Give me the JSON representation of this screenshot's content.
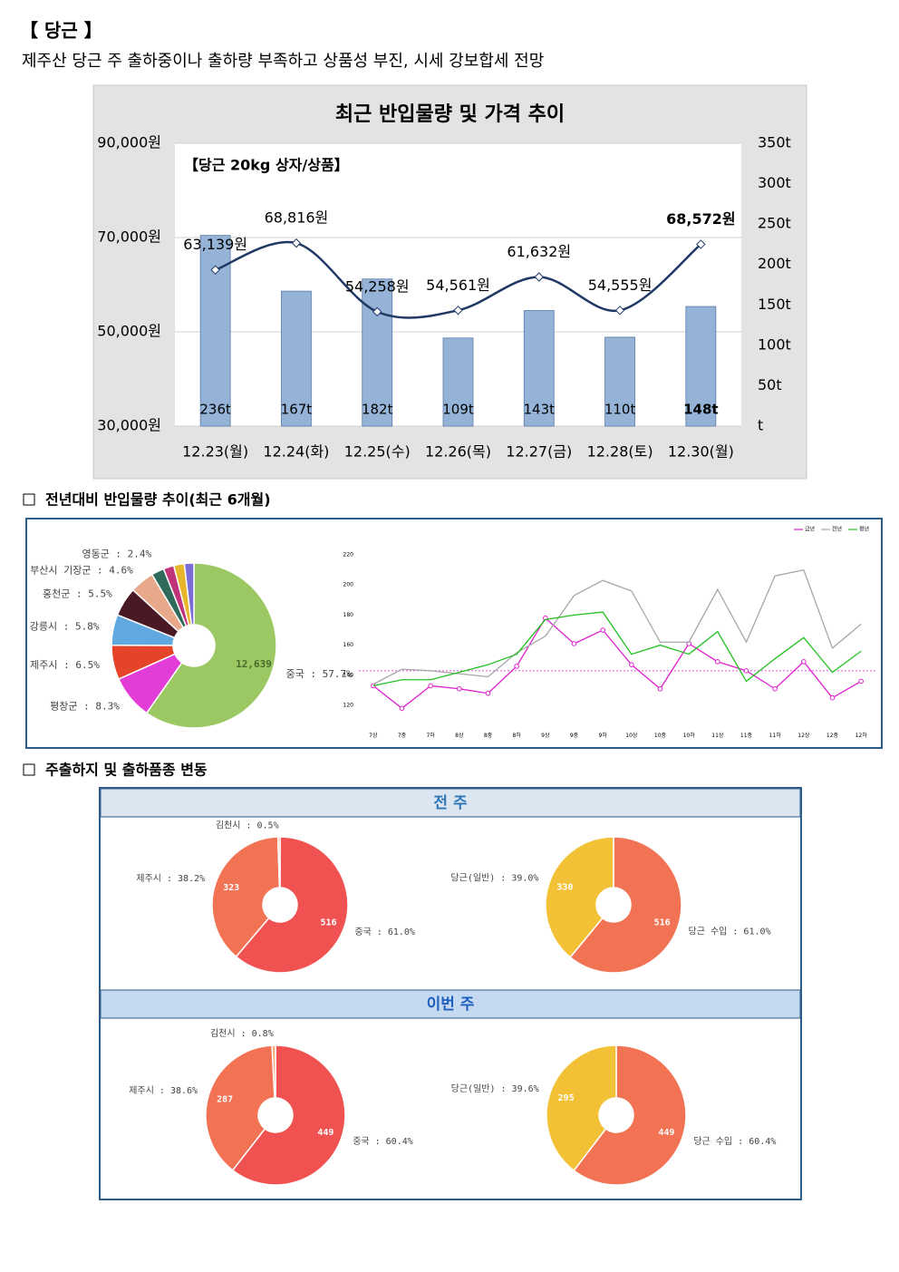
{
  "header": {
    "title": "【 당근 】",
    "subtitle": "제주산 당근 주 출하중이나 출하량 부족하고 상품성 부진, 시세 강보합세 전망"
  },
  "sections": [
    "전년대비 반입물량 추이(최근 6개월)",
    "주출하지 및 출하품종 변동"
  ],
  "panel_headers": [
    "전 주",
    "이번 주"
  ],
  "chart_data": [
    {
      "type": "combo",
      "title": "최근 반입물량 및 가격 추이",
      "annotation": "【당근 20kg 상자/상품】",
      "categories": [
        "12.23(월)",
        "12.24(화)",
        "12.25(수)",
        "12.26(목)",
        "12.27(금)",
        "12.28(토)",
        "12.30(월)"
      ],
      "ylim": [
        30000,
        90000
      ],
      "yticks": [
        {
          "value": 30000,
          "label": "30,000원"
        },
        {
          "value": 50000,
          "label": "50,000원"
        },
        {
          "value": 70000,
          "label": "70,000원"
        },
        {
          "value": 90000,
          "label": "90,000원"
        }
      ],
      "y2lim": [
        0,
        350
      ],
      "y2ticks": [
        {
          "value": 0,
          "label": "t"
        },
        {
          "value": 50,
          "label": "50t"
        },
        {
          "value": 100,
          "label": "100t"
        },
        {
          "value": 150,
          "label": "150t"
        },
        {
          "value": 200,
          "label": "200t"
        },
        {
          "value": 250,
          "label": "250t"
        },
        {
          "value": 300,
          "label": "300t"
        },
        {
          "value": 350,
          "label": "350t"
        }
      ],
      "grid": true,
      "highlight_index": 6,
      "series": [
        {
          "type": "bar",
          "axis": "y2",
          "color": "#95b3d7",
          "values": [
            236,
            167,
            182,
            109,
            143,
            110,
            148
          ],
          "value_labels": [
            "236t",
            "167t",
            "182t",
            "109t",
            "143t",
            "110t",
            "148t"
          ]
        },
        {
          "type": "line",
          "color": "#1f3864",
          "values": [
            63139,
            68816,
            54258,
            54561,
            61632,
            54555,
            68572
          ],
          "value_labels": [
            "63,139원",
            "68,816원",
            "54,258원",
            "54,561원",
            "61,632원",
            "54,555원",
            "68,572원"
          ]
        }
      ]
    },
    {
      "type": "donut",
      "values": [
        57.7,
        8.3,
        6.5,
        5.8,
        5.5,
        4.6,
        2.4,
        2.0,
        2.0,
        1.8
      ],
      "colors": [
        "#9bc862",
        "#e23dd6",
        "#e5432a",
        "#5fa8e0",
        "#4a1a24",
        "#e8a98a",
        "#2f6b5a",
        "#c0347a",
        "#e8b62a",
        "#7b6dd6"
      ],
      "value_labels": [
        "중국 : 57.7%",
        "평창군 : 8.3%",
        "제주시 : 6.5%",
        "강릉시 : 5.8%",
        "홍천군 : 5.5%",
        "부산시 기장군 : 4.6%",
        "영동군 : 2.4%",
        null,
        null,
        null
      ],
      "inner_labels": [
        "12,639",
        null,
        null,
        null,
        null,
        null,
        null,
        null,
        null,
        null
      ]
    },
    {
      "type": "line",
      "categories": [
        "7상",
        "7중",
        "7하",
        "8상",
        "8중",
        "8하",
        "9상",
        "9중",
        "9하",
        "10상",
        "10중",
        "10하",
        "11상",
        "11중",
        "11하",
        "12상",
        "12중",
        "12하"
      ],
      "ylim": [
        110,
        225
      ],
      "yticks": [
        120,
        140,
        160,
        180,
        200,
        220
      ],
      "grid": false,
      "legend": "top-right",
      "reference_line": 143,
      "series": [
        {
          "name": "금년",
          "color": "#e020d0",
          "markers": true,
          "values": [
            133,
            118,
            133,
            131,
            128,
            146,
            178,
            161,
            170,
            147,
            131,
            161,
            149,
            143,
            131,
            149,
            125,
            136
          ]
        },
        {
          "name": "전년",
          "color": "#a6a6a6",
          "markers": false,
          "values": [
            134,
            144,
            143,
            141,
            139,
            155,
            166,
            193,
            203,
            196,
            162,
            162,
            197,
            162,
            206,
            210,
            158,
            174
          ]
        },
        {
          "name": "평년",
          "color": "#22c022",
          "markers": false,
          "values": [
            133,
            137,
            137,
            142,
            147,
            154,
            177,
            180,
            182,
            154,
            160,
            154,
            169,
            136,
            151,
            165,
            142,
            156
          ]
        }
      ]
    },
    {
      "type": "donut",
      "values": [
        61.0,
        38.2,
        0.5
      ],
      "colors": [
        "#f05252",
        "#f27254",
        "#f5a878"
      ],
      "value_labels": [
        "중국 : 61.0%",
        "제주시 : 38.2%",
        "김천시 : 0.5%"
      ],
      "inner_labels": [
        "516",
        "323",
        null
      ]
    },
    {
      "type": "donut",
      "values": [
        61.0,
        39.0
      ],
      "colors": [
        "#f27254",
        "#f2c136"
      ],
      "value_labels": [
        "당근 수입 : 61.0%",
        "당근(일반) : 39.0%"
      ],
      "inner_labels": [
        "516",
        "330"
      ]
    },
    {
      "type": "donut",
      "values": [
        60.4,
        38.6,
        0.8
      ],
      "colors": [
        "#f05252",
        "#f27254",
        "#f5a878"
      ],
      "value_labels": [
        "중국 : 60.4%",
        "제주시 : 38.6%",
        "김천시 : 0.8%"
      ],
      "inner_labels": [
        "449",
        "287",
        null
      ]
    },
    {
      "type": "donut",
      "values": [
        60.4,
        39.6
      ],
      "colors": [
        "#f27254",
        "#f2c136"
      ],
      "value_labels": [
        "당근 수입 : 60.4%",
        "당근(일반) : 39.6%"
      ],
      "inner_labels": [
        "449",
        "295"
      ]
    }
  ]
}
